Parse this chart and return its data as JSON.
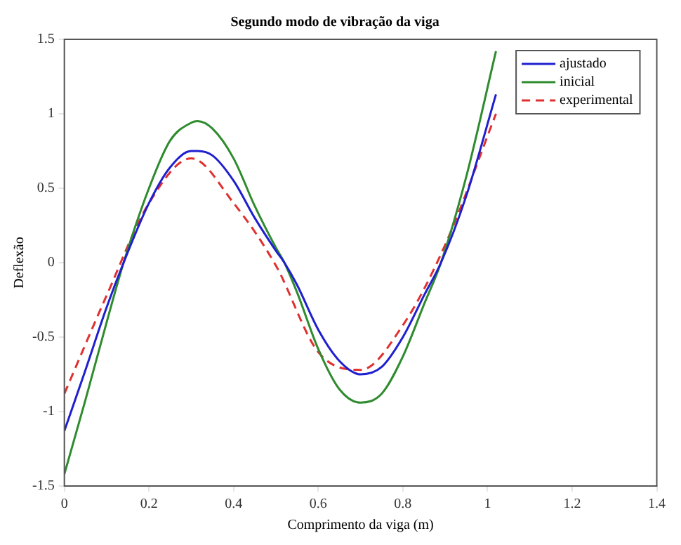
{
  "chart_data": {
    "type": "line",
    "title": "Segundo modo de vibração da viga",
    "xlabel": "Comprimento da viga (m)",
    "ylabel": "Deflexão",
    "xlim": [
      0,
      1.4
    ],
    "xticks": [
      0,
      0.2,
      0.4,
      0.6,
      0.8,
      1,
      1.2,
      1.4
    ],
    "ylim": [
      -1.5,
      1.5
    ],
    "yticks": [
      -1.5,
      -1,
      -0.5,
      0,
      0.5,
      1,
      1.5
    ],
    "grid": false,
    "legend": "top right",
    "marker": "none",
    "series": [
      {
        "name": "ajustado",
        "color": "#1f1fd0",
        "line_style": "solid",
        "x": [
          0,
          0.05,
          0.1,
          0.14,
          0.2,
          0.25,
          0.3,
          0.315,
          0.35,
          0.4,
          0.45,
          0.5,
          0.52,
          0.55,
          0.6,
          0.65,
          0.7,
          0.75,
          0.8,
          0.85,
          0.89,
          0.95,
          1.02
        ],
        "values": [
          -1.13,
          -0.72,
          -0.3,
          0,
          0.4,
          0.64,
          0.75,
          0.75,
          0.72,
          0.55,
          0.3,
          0.08,
          0,
          -0.15,
          -0.45,
          -0.66,
          -0.75,
          -0.7,
          -0.5,
          -0.22,
          0,
          0.45,
          1.13
        ]
      },
      {
        "name": "inicial",
        "color": "#2e8b2e",
        "line_style": "solid",
        "x": [
          0,
          0.05,
          0.1,
          0.14,
          0.2,
          0.25,
          0.3,
          0.315,
          0.35,
          0.4,
          0.45,
          0.5,
          0.52,
          0.55,
          0.6,
          0.65,
          0.7,
          0.75,
          0.8,
          0.85,
          0.89,
          0.95,
          1.02
        ],
        "values": [
          -1.42,
          -0.92,
          -0.4,
          0,
          0.5,
          0.82,
          0.94,
          0.95,
          0.9,
          0.7,
          0.38,
          0.1,
          0,
          -0.2,
          -0.58,
          -0.85,
          -0.94,
          -0.88,
          -0.63,
          -0.28,
          0,
          0.58,
          1.42
        ]
      },
      {
        "name": "experimental",
        "color": "#e03030",
        "line_style": "dashed",
        "x": [
          0,
          0.1,
          0.2,
          0.3,
          0.4,
          0.5,
          0.6,
          0.7,
          0.8,
          0.9,
          1.02
        ],
        "values": [
          -0.88,
          -0.22,
          0.4,
          0.7,
          0.4,
          -0.02,
          -0.6,
          -0.72,
          -0.42,
          0.12,
          1.0
        ]
      }
    ]
  }
}
